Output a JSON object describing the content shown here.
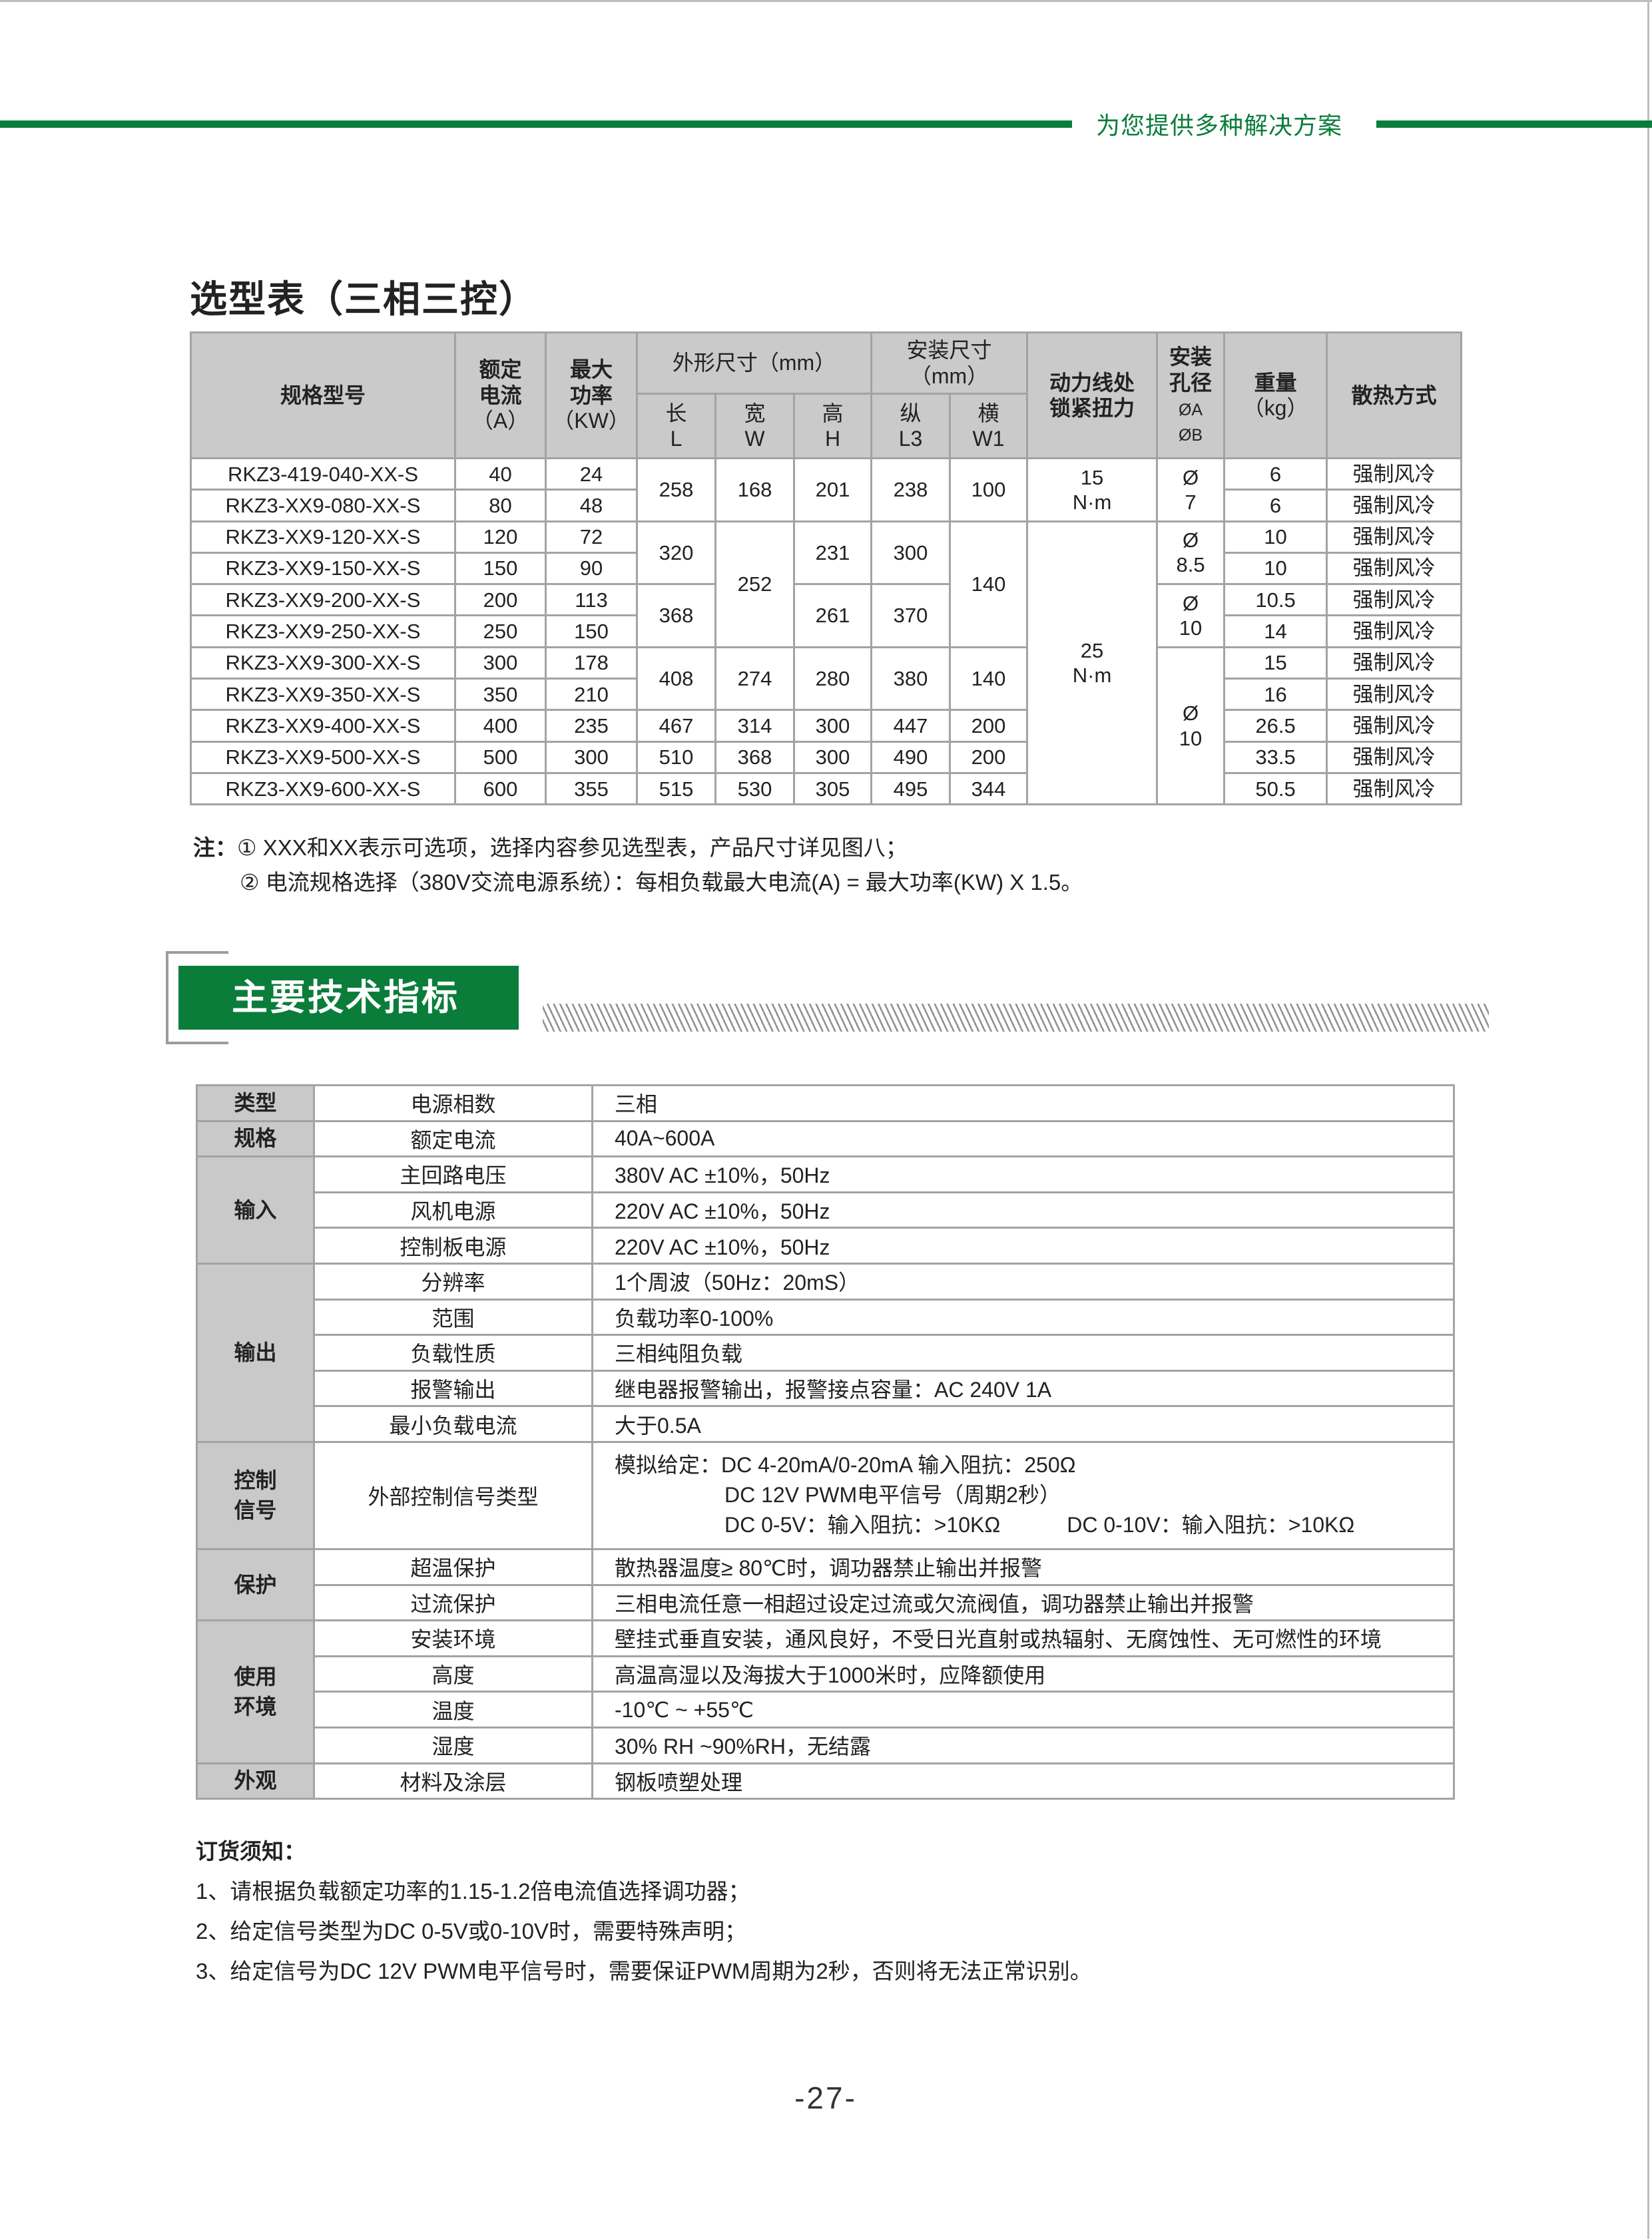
{
  "header": {
    "slogan": "为您提供多种解决方案",
    "brand_color": "#0b7d3b"
  },
  "selection": {
    "title": "选型表（三相三控）",
    "headers": {
      "model": "规格型号",
      "current": [
        "额定",
        "电流",
        "（A）"
      ],
      "power": [
        "最大",
        "功率",
        "（KW）"
      ],
      "outer": "外形尺寸（mm）",
      "mount": [
        "安装尺寸",
        "（mm）"
      ],
      "torque": [
        "动力线处",
        "锁紧扭力"
      ],
      "hole": [
        "安装",
        "孔径",
        "ØA",
        "ØB"
      ],
      "weight": [
        "重量",
        "（kg）"
      ],
      "cooling": "散热方式",
      "L": [
        "长",
        "L"
      ],
      "W": [
        "宽",
        "W"
      ],
      "H": [
        "高",
        "H"
      ],
      "L3": [
        "纵",
        "L3"
      ],
      "W1": [
        "横",
        "W1"
      ]
    },
    "rows": [
      {
        "model": "RKZ3-419-040-XX-S",
        "current": "40",
        "power": "24",
        "weight": "6",
        "cooling": "强制风冷"
      },
      {
        "model": "RKZ3-XX9-080-XX-S",
        "current": "80",
        "power": "48",
        "weight": "6",
        "cooling": "强制风冷"
      },
      {
        "model": "RKZ3-XX9-120-XX-S",
        "current": "120",
        "power": "72",
        "weight": "10",
        "cooling": "强制风冷"
      },
      {
        "model": "RKZ3-XX9-150-XX-S",
        "current": "150",
        "power": "90",
        "weight": "10",
        "cooling": "强制风冷"
      },
      {
        "model": "RKZ3-XX9-200-XX-S",
        "current": "200",
        "power": "113",
        "weight": "10.5",
        "cooling": "强制风冷"
      },
      {
        "model": "RKZ3-XX9-250-XX-S",
        "current": "250",
        "power": "150",
        "weight": "14",
        "cooling": "强制风冷"
      },
      {
        "model": "RKZ3-XX9-300-XX-S",
        "current": "300",
        "power": "178",
        "weight": "15",
        "cooling": "强制风冷"
      },
      {
        "model": "RKZ3-XX9-350-XX-S",
        "current": "350",
        "power": "210",
        "weight": "16",
        "cooling": "强制风冷"
      },
      {
        "model": "RKZ3-XX9-400-XX-S",
        "current": "400",
        "power": "235",
        "weight": "26.5",
        "cooling": "强制风冷"
      },
      {
        "model": "RKZ3-XX9-500-XX-S",
        "current": "500",
        "power": "300",
        "weight": "33.5",
        "cooling": "强制风冷"
      },
      {
        "model": "RKZ3-XX9-600-XX-S",
        "current": "600",
        "power": "355",
        "weight": "50.5",
        "cooling": "强制风冷"
      }
    ],
    "dims": {
      "L": [
        "258",
        "320",
        "368",
        "408",
        "467",
        "510",
        "515"
      ],
      "W": [
        "168",
        "252",
        "274",
        "314",
        "368",
        "530"
      ],
      "H": [
        "201",
        "231",
        "261",
        "280",
        "300",
        "300",
        "305"
      ],
      "L3": [
        "238",
        "300",
        "370",
        "380",
        "447",
        "490",
        "495"
      ],
      "W1": [
        "100",
        "140",
        "140",
        "200",
        "200",
        "344"
      ]
    },
    "torque": [
      {
        "value": "15",
        "unit": "N·m"
      },
      {
        "value": "25",
        "unit": "N·m"
      }
    ],
    "hole": [
      {
        "symbol": "Ø",
        "value": "7"
      },
      {
        "symbol": "Ø",
        "value": "8.5"
      },
      {
        "symbol": "Ø",
        "value": "10"
      },
      {
        "symbol": "Ø",
        "value": "10"
      }
    ]
  },
  "notes": {
    "label": "注：",
    "line1": "① XXX和XX表示可选项，选择内容参见选型表，产品尺寸详见图八；",
    "line2": "② 电流规格选择（380V交流电源系统）：每相负载最大电流(A) = 最大功率(KW) X 1.5。"
  },
  "section": {
    "title": "主要技术指标"
  },
  "spec": [
    {
      "category": "类型",
      "items": [
        {
          "name": "电源相数",
          "value": "三相"
        }
      ]
    },
    {
      "category": "规格",
      "items": [
        {
          "name": "额定电流",
          "value": "40A~600A"
        }
      ]
    },
    {
      "category": "输入",
      "items": [
        {
          "name": "主回路电压",
          "value": "380V AC ±10%，50Hz"
        },
        {
          "name": "风机电源",
          "value": "220V AC ±10%，50Hz"
        },
        {
          "name": "控制板电源",
          "value": "220V AC ±10%，50Hz"
        }
      ]
    },
    {
      "category": "输出",
      "items": [
        {
          "name": "分辨率",
          "value": "1个周波（50Hz：20mS）"
        },
        {
          "name": "范围",
          "value": "负载功率0-100%"
        },
        {
          "name": "负载性质",
          "value": "三相纯阻负载"
        },
        {
          "name": "报警输出",
          "value": "继电器报警输出，报警接点容量：AC 240V 1A"
        },
        {
          "name": "最小负载电流",
          "value": "大于0.5A"
        }
      ]
    },
    {
      "category": [
        "控制",
        "信号"
      ],
      "items": [
        {
          "name": "外部控制信号类型",
          "lines": [
            "模拟给定：DC 4-20mA/0-20mA  输入阻抗：250Ω",
            "DC 12V  PWM电平信号（周期2秒）",
            "DC 0-5V：输入阻抗：>10KΩ",
            "DC 0-10V：输入阻抗：>10KΩ"
          ]
        }
      ]
    },
    {
      "category": "保护",
      "items": [
        {
          "name": "超温保护",
          "value": "散热器温度≥ 80℃时，调功器禁止输出并报警"
        },
        {
          "name": "过流保护",
          "value": "三相电流任意一相超过设定过流或欠流阀值，调功器禁止输出并报警"
        }
      ]
    },
    {
      "category": [
        "使用",
        "环境"
      ],
      "items": [
        {
          "name": "安装环境",
          "value": "壁挂式垂直安装，通风良好，不受日光直射或热辐射、无腐蚀性、无可燃性的环境"
        },
        {
          "name": "高度",
          "value": "高温高湿以及海拔大于1000米时，应降额使用"
        },
        {
          "name": "温度",
          "value": "-10℃ ~ +55℃"
        },
        {
          "name": "湿度",
          "value": "30% RH ~90%RH，无结露"
        }
      ]
    },
    {
      "category": "外观",
      "items": [
        {
          "name": "材料及涂层",
          "value": "钢板喷塑处理"
        }
      ]
    }
  ],
  "order": {
    "title": "订货须知：",
    "items": [
      "1、请根据负载额定功率的1.15-1.2倍电流值选择调功器；",
      "2、给定信号类型为DC 0-5V或0-10V时，需要特殊声明；",
      "3、给定信号为DC 12V PWM电平信号时，需要保证PWM周期为2秒，否则将无法正常识别。"
    ]
  },
  "page_number": "-27-"
}
